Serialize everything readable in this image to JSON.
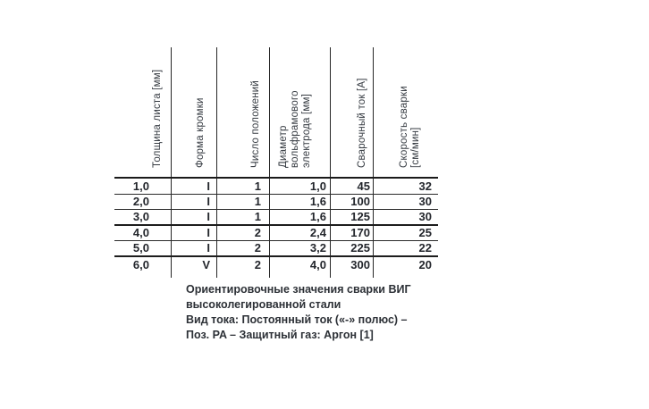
{
  "table": {
    "headers": [
      {
        "lines": [
          "Толщина листа [мм]"
        ]
      },
      {
        "lines": [
          "Форма кромки"
        ]
      },
      {
        "lines": [
          "Число положений"
        ]
      },
      {
        "lines": [
          "Диаметр",
          "вольфрамового",
          "электрода [мм]"
        ]
      },
      {
        "lines": [
          "Сварочный ток [А]"
        ]
      },
      {
        "lines": [
          "Скорость сварки",
          "[см/мин]"
        ]
      }
    ],
    "rows": [
      [
        "1,0",
        "I",
        "1",
        "1,0",
        "45",
        "32"
      ],
      [
        "2,0",
        "I",
        "1",
        "1,6",
        "100",
        "30"
      ],
      [
        "3,0",
        "I",
        "1",
        "1,6",
        "125",
        "30"
      ],
      [
        "4,0",
        "I",
        "2",
        "2,4",
        "170",
        "25"
      ],
      [
        "5,0",
        "I",
        "2",
        "3,2",
        "225",
        "22"
      ],
      [
        "6,0",
        "V",
        "2",
        "4,0",
        "300",
        "20"
      ]
    ]
  },
  "caption": {
    "lines": [
      "Ориентировочные значения сварки ВИГ",
      "высоколегированной стали",
      "Вид тока: Постоянный ток («-» полюс) –",
      "Поз. PA – Защитный газ: Аргон [1]"
    ]
  },
  "colors": {
    "line": "#262626",
    "text": "#23262c",
    "background": "#ffffff"
  }
}
